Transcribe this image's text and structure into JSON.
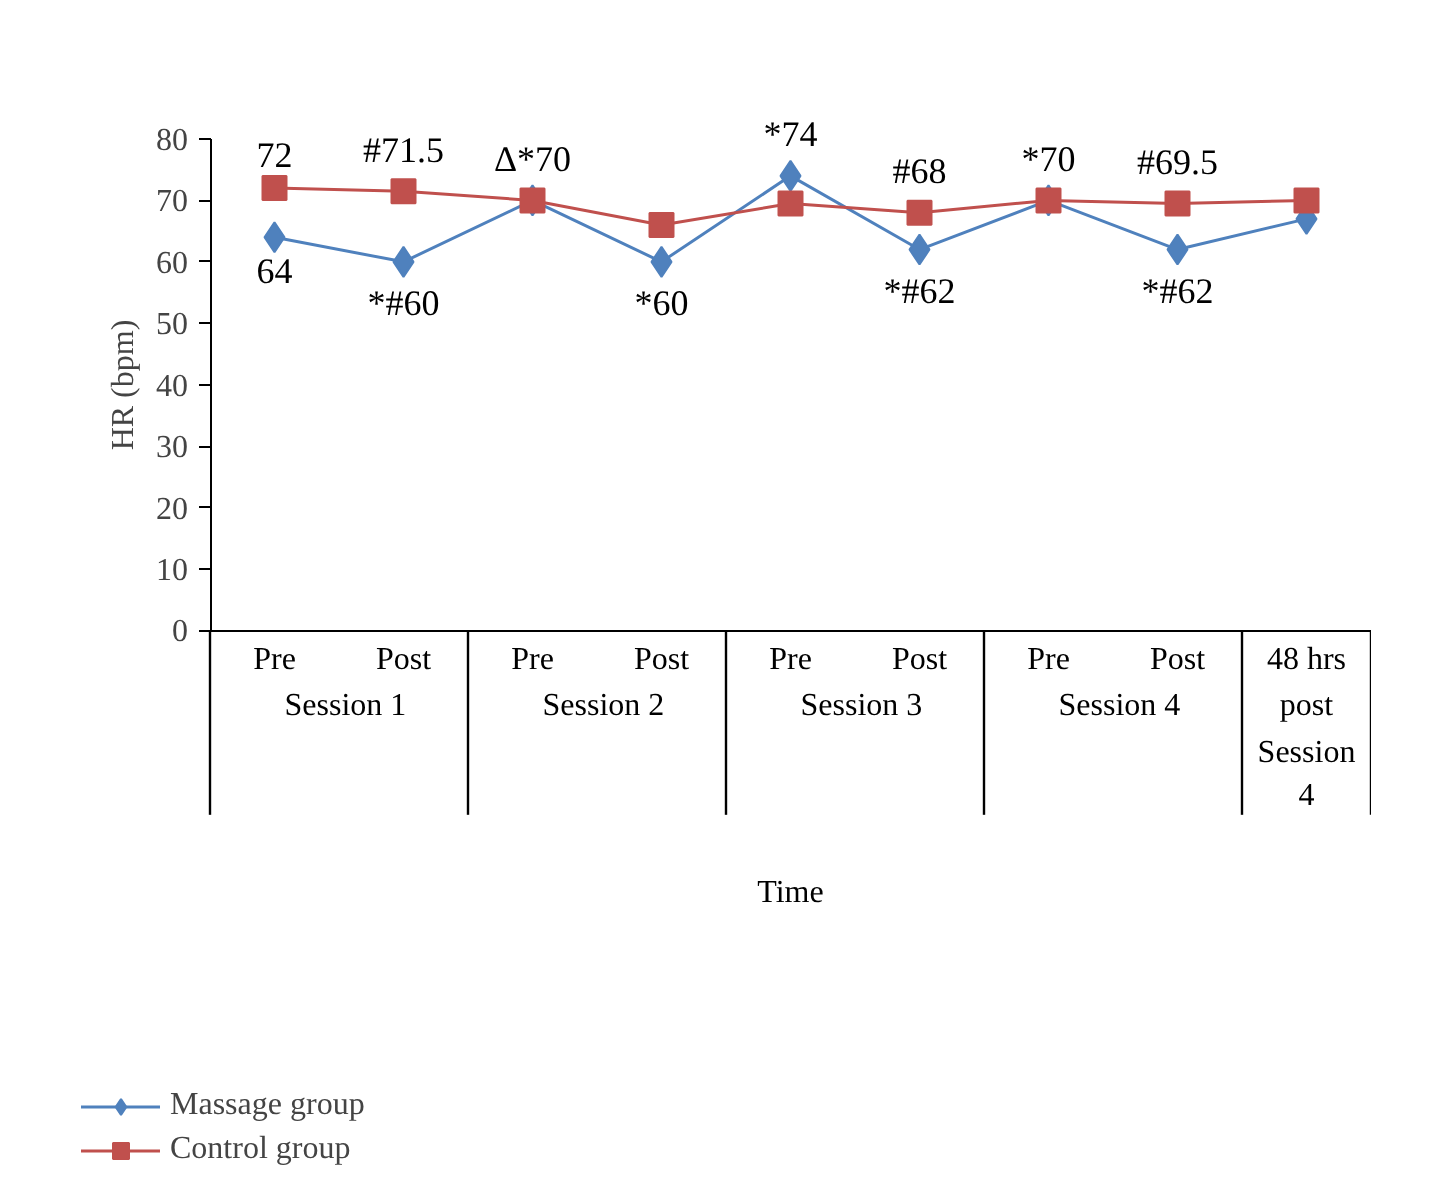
{
  "chart_data": {
    "type": "line",
    "xlabel": "Time",
    "ylabel": "HR (bpm)",
    "categories": [
      "Pre",
      "Post",
      "Pre",
      "Post",
      "Pre",
      "Post",
      "Pre",
      "Post",
      "48 hrs post Session 4"
    ],
    "ylim": [
      0,
      80
    ],
    "yticks": [
      0,
      10,
      20,
      30,
      40,
      50,
      60,
      70,
      80
    ],
    "legend": "bottom left",
    "annotations": [
      "Session 1",
      "Session 2",
      "Session 3",
      "Session 4"
    ],
    "series": [
      {
        "name": "Massage group",
        "color": "#4f81bd",
        "marker": "diamond",
        "values": [
          64,
          60,
          70,
          60,
          74,
          62,
          70,
          62,
          67
        ],
        "value_labels": [
          "64",
          "*#60",
          "Δ*70",
          "*60",
          "*74",
          "*#62",
          "*70",
          "*#62",
          null
        ]
      },
      {
        "name": "Control group",
        "color": "#c0504d",
        "marker": "square",
        "values": [
          72,
          71.5,
          70,
          66,
          69.5,
          68,
          70,
          69.5,
          70
        ],
        "value_labels": [
          "72",
          "#71.5",
          null,
          null,
          null,
          "#68",
          null,
          "#69.5",
          null
        ]
      }
    ]
  }
}
